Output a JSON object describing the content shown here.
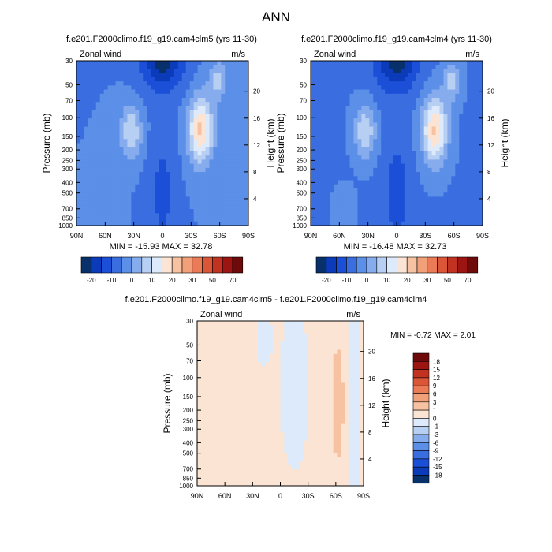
{
  "chart_data": {
    "type": "contour",
    "suptitle": "ANN",
    "levels_main": [
      -20,
      -15,
      -10,
      -5,
      0,
      5,
      10,
      15,
      20,
      25,
      30,
      40,
      50,
      60,
      70
    ],
    "levels_diff": [
      -18,
      -15,
      -12,
      -9,
      -6,
      -3,
      -1,
      0,
      1,
      3,
      6,
      9,
      12,
      15,
      18
    ],
    "colorbar_main": [
      "#08306b",
      "#0b3bb8",
      "#1c4fd8",
      "#3a6ee0",
      "#5b8fe8",
      "#86acee",
      "#b6cff3",
      "#ddeafb",
      "#fbe4d3",
      "#f7c2a1",
      "#f2a07a",
      "#ea7b56",
      "#db5537",
      "#c13221",
      "#9c1512",
      "#6e0a0a"
    ],
    "colorbar_diff": [
      "#08306b",
      "#0b3bb8",
      "#1c4fd8",
      "#3a6ee0",
      "#5b8fe8",
      "#86acee",
      "#b6cff3",
      "#ddeafb",
      "#fbe4d3",
      "#f7c2a1",
      "#f2a07a",
      "#ea7b56",
      "#db5537",
      "#c13221",
      "#9c1512",
      "#6e0a0a"
    ],
    "colorbar_main_labels": [
      "-20",
      "-10",
      "0",
      "10",
      "20",
      "30",
      "50",
      "70"
    ],
    "colorbar_diff_labels": [
      "18",
      "15",
      "12",
      "9",
      "6",
      "3",
      "1",
      "0",
      "-1",
      "-3",
      "-6",
      "-9",
      "-12",
      "-15",
      "-18"
    ],
    "xtick_labels": [
      "90N",
      "60N",
      "30N",
      "0",
      "30S",
      "60S",
      "90S"
    ],
    "pressure_ticks": [
      "30",
      "50",
      "70",
      "100",
      "150",
      "200",
      "250",
      "300",
      "400",
      "500",
      "700",
      "850",
      "1000"
    ],
    "pressure_values": [
      30,
      50,
      70,
      100,
      150,
      200,
      250,
      300,
      400,
      500,
      700,
      850,
      1000
    ],
    "height_ticks": [
      "4",
      "8",
      "12",
      "16",
      "20"
    ],
    "height_values": [
      4,
      8,
      12,
      16,
      20
    ],
    "ylabel": "Pressure (mb)",
    "ylabel_right": "Height (km)",
    "panels": [
      {
        "title": "f.e201.F2000climo.f19_g19.cam4clm5 (yrs 11-30)",
        "variable": "Zonal wind",
        "units": "m/s",
        "stats": "MIN = -15.93  MAX =  32.78",
        "min": -15.93,
        "max": 32.78
      },
      {
        "title": "f.e201.F2000climo.f19_g19.cam4clm4 (yrs 11-30)",
        "variable": "Zonal wind",
        "units": "m/s",
        "stats": "MIN = -16.48  MAX =  32.73",
        "min": -16.48,
        "max": 32.73
      },
      {
        "title": "f.e201.F2000climo.f19_g19.cam4clm5 - f.e201.F2000climo.f19_g19.cam4clm4",
        "variable": "Zonal wind",
        "units": "m/s",
        "stats": "MIN =  -0.72  MAX =   2.01",
        "min": -0.72,
        "max": 2.01
      }
    ]
  }
}
